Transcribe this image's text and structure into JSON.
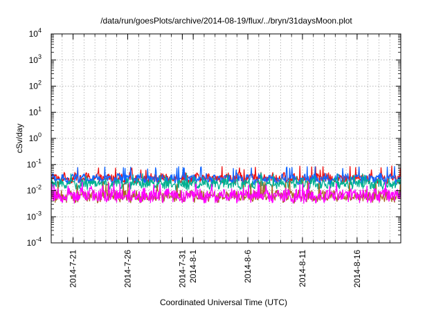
{
  "chart_data": {
    "type": "line",
    "title": "/data/run/goesPlots/archive/2014-08-19/flux/../bryn/31daysMoon.plot",
    "xlabel": "Coordinated Universal Time (UTC)",
    "ylabel": "cSv/day",
    "yscale": "log",
    "ylim": [
      0.0001,
      10000
    ],
    "xlim": [
      "2014-07-19",
      "2014-08-20"
    ],
    "grid": true,
    "y_ticks": [
      {
        "value": 0.0001,
        "mant": "10",
        "exp": "-4"
      },
      {
        "value": 0.001,
        "mant": "10",
        "exp": "-3"
      },
      {
        "value": 0.01,
        "mant": "10",
        "exp": "-2"
      },
      {
        "value": 0.1,
        "mant": "10",
        "exp": "-1"
      },
      {
        "value": 1,
        "mant": "10",
        "exp": "0"
      },
      {
        "value": 10,
        "mant": "10",
        "exp": "1"
      },
      {
        "value": 100,
        "mant": "10",
        "exp": "2"
      },
      {
        "value": 1000,
        "mant": "10",
        "exp": "3"
      },
      {
        "value": 10000,
        "mant": "10",
        "exp": "4"
      }
    ],
    "x_ticks": [
      {
        "date": "2014-07-21",
        "label": "2014-7-21"
      },
      {
        "date": "2014-07-26",
        "label": "2014-7-26"
      },
      {
        "date": "2014-07-31",
        "label": "2014-7-31"
      },
      {
        "date": "2014-08-01",
        "label": "2014-8-1"
      },
      {
        "date": "2014-08-06",
        "label": "2014-8-6"
      },
      {
        "date": "2014-08-11",
        "label": "2014-8-11"
      },
      {
        "date": "2014-08-16",
        "label": "2014-8-16"
      }
    ],
    "x_minor_dates": [
      "2014-07-20",
      "2014-07-22",
      "2014-07-23",
      "2014-07-24",
      "2014-07-25",
      "2014-07-27",
      "2014-07-28",
      "2014-07-29",
      "2014-07-30",
      "2014-08-02",
      "2014-08-03",
      "2014-08-04",
      "2014-08-05",
      "2014-08-07",
      "2014-08-08",
      "2014-08-09",
      "2014-08-10",
      "2014-08-12",
      "2014-08-13",
      "2014-08-14",
      "2014-08-15",
      "2014-08-17",
      "2014-08-18",
      "2014-08-19",
      "2014-08-20"
    ],
    "series": [
      {
        "color": "#ee1111",
        "baseline": 0.03,
        "spread": 0.38,
        "spike": 0.075
      },
      {
        "color": "#1166ff",
        "baseline": 0.028,
        "spread": 0.36,
        "spike": 0.07
      },
      {
        "color": "#00b090",
        "baseline": 0.018,
        "spread": 0.4,
        "spike": 0.04
      },
      {
        "color": "#a86820",
        "baseline": 0.006,
        "spread": 0.45,
        "spike": 0.02
      },
      {
        "color": "#ff00ff",
        "baseline": 0.0065,
        "spread": 0.55,
        "spike": 0.018
      }
    ]
  }
}
